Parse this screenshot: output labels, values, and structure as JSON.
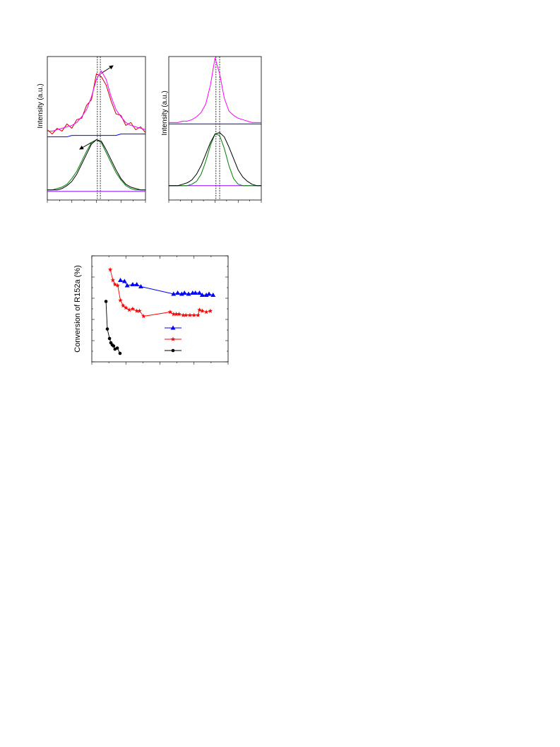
{
  "chart_data": [
    {
      "type": "line",
      "y_label": "Intensity (a.u.)",
      "xlim": [
        0,
        100
      ],
      "ylim": [
        0,
        100
      ],
      "x": [
        0,
        5,
        10,
        15,
        20,
        25,
        30,
        35,
        40,
        45,
        50,
        55,
        60,
        65,
        70,
        75,
        80,
        85,
        90,
        95,
        100
      ],
      "vlines": [
        51,
        54
      ],
      "series": [
        {
          "color": "#0000ff",
          "values": [
            44,
            44,
            44,
            44,
            44,
            45,
            45,
            45,
            45,
            45,
            45,
            45,
            45,
            45,
            45,
            46,
            46,
            46,
            46,
            46,
            46
          ]
        },
        {
          "color": "#8b00ff",
          "values": [
            6,
            6,
            6,
            6,
            6,
            6,
            6,
            6,
            6,
            6,
            6,
            6,
            6,
            6,
            6,
            6,
            6,
            6,
            6,
            6,
            6
          ]
        },
        {
          "color": "#cc0000",
          "values": [
            49,
            46,
            50,
            48,
            53,
            50,
            56,
            57,
            66,
            70,
            88,
            86,
            80,
            69,
            60,
            59,
            52,
            54,
            49,
            51,
            47
          ]
        },
        {
          "color": "#ff00ff",
          "values": [
            48,
            48,
            49,
            50,
            51,
            52,
            54,
            58,
            63,
            72,
            84,
            90,
            84,
            72,
            63,
            58,
            54,
            52,
            51,
            50,
            49
          ]
        },
        {
          "color": "#008000",
          "values": [
            7,
            7,
            8,
            9,
            11,
            15,
            20,
            27,
            34,
            40,
            42,
            40,
            33,
            26,
            19,
            14,
            10,
            8,
            7,
            7,
            7
          ]
        },
        {
          "color": "#000000",
          "values": [
            7,
            7,
            7,
            8,
            10,
            13,
            18,
            25,
            32,
            39,
            42,
            41,
            35,
            28,
            21,
            15,
            11,
            9,
            8,
            7,
            7
          ]
        }
      ]
    },
    {
      "type": "line",
      "y_label": "Intensity (a.u.)",
      "xlim": [
        0,
        100
      ],
      "ylim": [
        0,
        100
      ],
      "x": [
        0,
        5,
        10,
        15,
        20,
        25,
        30,
        35,
        40,
        45,
        50,
        55,
        60,
        65,
        70,
        75,
        80,
        85,
        90,
        95,
        100
      ],
      "vlines": [
        51,
        55
      ],
      "series": [
        {
          "color": "#0000ff",
          "values": [
            53,
            53,
            53,
            53,
            53,
            53,
            53,
            53,
            53,
            53,
            53,
            53,
            53,
            53,
            53,
            53,
            53,
            53,
            53,
            53,
            53
          ]
        },
        {
          "color": "#8b00ff",
          "values": [
            10,
            10,
            10,
            10,
            10,
            10,
            10,
            10,
            10,
            10,
            10,
            10,
            10,
            10,
            10,
            10,
            10,
            10,
            10,
            10,
            10
          ]
        },
        {
          "color": "#ff00ff",
          "values": [
            54,
            54,
            54,
            55,
            55,
            56,
            58,
            61,
            67,
            80,
            99,
            88,
            71,
            62,
            59,
            57,
            56,
            55,
            54,
            54,
            54
          ]
        },
        {
          "color": "#008000",
          "values": [
            10,
            10,
            10,
            10,
            10,
            11,
            13,
            18,
            27,
            38,
            46,
            45,
            36,
            24,
            15,
            11,
            10,
            10,
            10,
            10,
            10
          ]
        },
        {
          "color": "#000000",
          "values": [
            10,
            10,
            10,
            11,
            12,
            14,
            18,
            24,
            32,
            40,
            46,
            47,
            44,
            37,
            29,
            21,
            16,
            13,
            11,
            10,
            10
          ]
        }
      ]
    },
    {
      "type": "line",
      "y_label": "Conversion of R152a (%)",
      "xlim": [
        0,
        100
      ],
      "ylim": [
        0,
        100
      ],
      "series": [
        {
          "color": "#0000ff",
          "marker": "triangle",
          "x": [
            21,
            24,
            26,
            30,
            33,
            36,
            60,
            63,
            66,
            68,
            71,
            74,
            76,
            79,
            81,
            84,
            86,
            89
          ],
          "values": [
            77,
            76,
            72,
            73,
            73,
            71,
            64,
            65,
            64,
            65,
            64,
            65,
            65,
            65,
            63,
            63,
            64,
            63
          ]
        },
        {
          "color": "#ff0000",
          "marker": "star",
          "x": [
            13.5,
            15.5,
            17,
            19,
            21,
            23,
            25,
            27.5,
            30,
            33,
            35,
            38,
            57.5,
            60,
            62,
            64,
            67,
            69,
            72,
            75,
            78,
            79,
            81,
            84,
            87
          ],
          "values": [
            87,
            77,
            73,
            72,
            58,
            53,
            51,
            49,
            50,
            48,
            48,
            43,
            47,
            45,
            45,
            45,
            44,
            44,
            44,
            44,
            44,
            49,
            48,
            47,
            48
          ]
        },
        {
          "color": "#000000",
          "marker": "circle",
          "x": [
            10.4,
            11.4,
            13,
            14,
            15,
            16,
            17,
            18.7,
            20.7
          ],
          "values": [
            57,
            31,
            22,
            18,
            16,
            15,
            12,
            13,
            8
          ]
        }
      ]
    }
  ]
}
